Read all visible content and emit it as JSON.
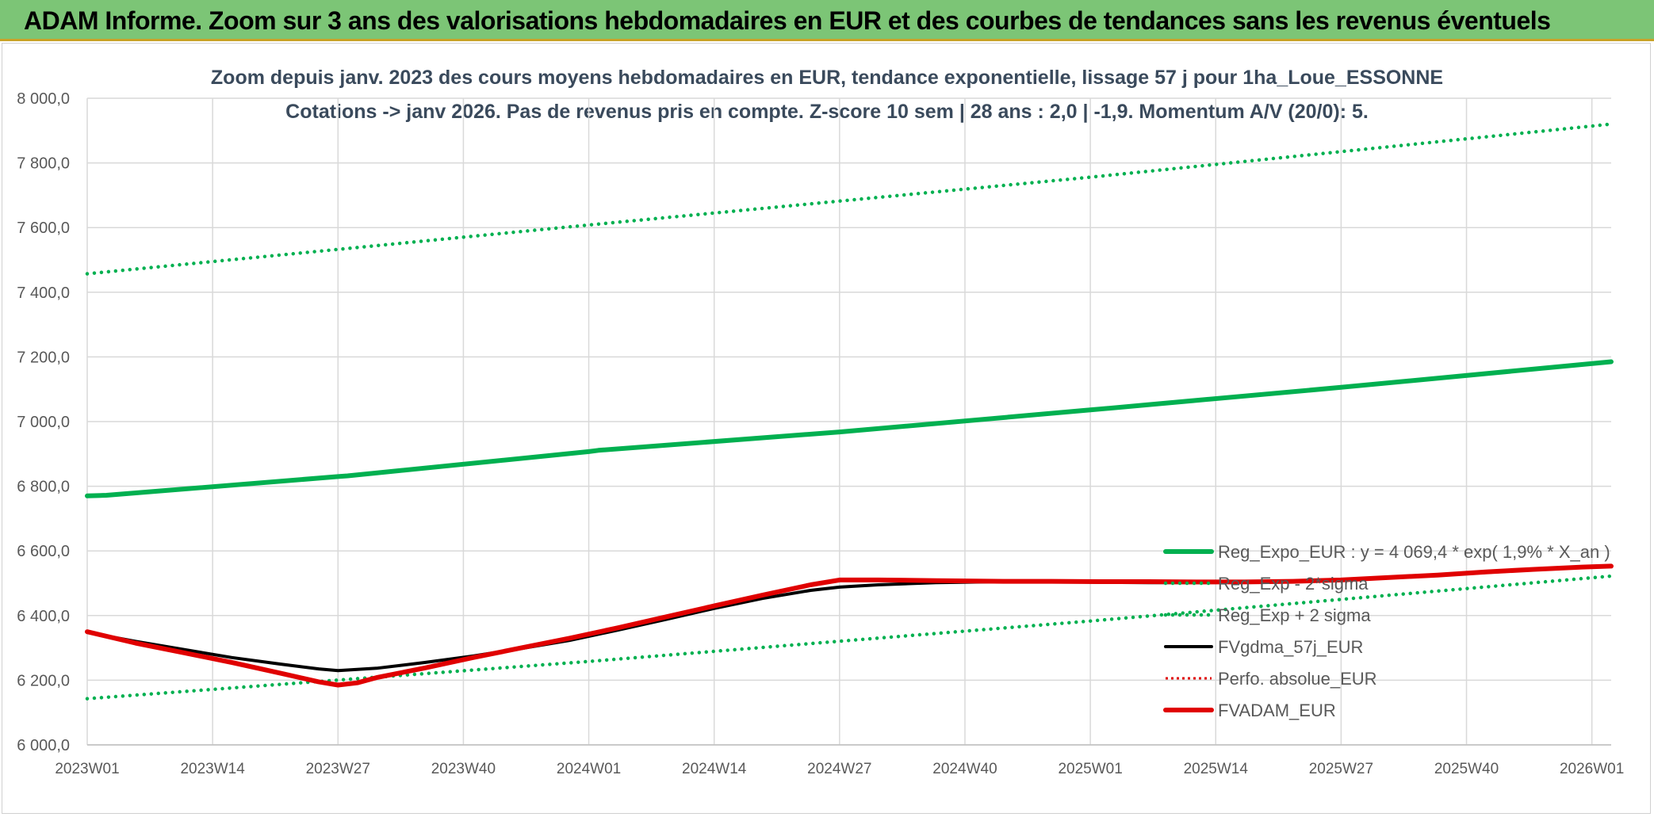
{
  "banner": {
    "title": "ADAM Informe. Zoom sur 3 ans des valorisations hebdomadaires en EUR et des courbes de tendances sans les revenus éventuels"
  },
  "chart_data": {
    "type": "line",
    "title": "Zoom depuis janv. 2023 des cours moyens hebdomadaires en EUR, tendance exponentielle, lissage 57 j pour 1ha_Loue_ESSONNE",
    "subtitle": "Cotations -> janv 2026. Pas de revenus pris en compte. Z-score 10 sem | 28 ans : 2,0 | -1,9. Momentum A/V (20/0): 5.",
    "xlabel": "",
    "ylabel": "",
    "ylim": [
      6000,
      8000
    ],
    "yticks": [
      "6 000,0",
      "6 200,0",
      "6 400,0",
      "6 600,0",
      "6 800,0",
      "7 000,0",
      "7 200,0",
      "7 400,0",
      "7 600,0",
      "7 800,0",
      "8 000,0"
    ],
    "ytick_values": [
      6000,
      6200,
      6400,
      6600,
      6800,
      7000,
      7200,
      7400,
      7600,
      7800,
      8000
    ],
    "x_index_range": [
      0,
      158
    ],
    "x_categories": [
      "2023W01",
      "2023W14",
      "2023W27",
      "2023W40",
      "2024W01",
      "2024W14",
      "2024W27",
      "2024W40",
      "2025W01",
      "2025W14",
      "2025W27",
      "2025W40",
      "2026W01"
    ],
    "x_category_index": [
      0,
      13,
      26,
      39,
      52,
      65,
      78,
      91,
      104,
      117,
      130,
      143,
      156
    ],
    "legend_position": "bottom-right",
    "series": [
      {
        "name": "Reg_Expo_EUR : y = 4 069,4 * exp( 1,9% *  X_an )",
        "color": "#00b050",
        "style": "solid-thick",
        "x": [
          0,
          2,
          26,
          27,
          52,
          53,
          78,
          104,
          130,
          158
        ],
        "values": [
          6770,
          6772,
          6830,
          6832,
          6907,
          6911,
          6968,
          7036,
          7106,
          7185
        ]
      },
      {
        "name": "Reg_Exp - 2*sigma",
        "color": "#00b050",
        "style": "dotted",
        "x": [
          0,
          52,
          104,
          158
        ],
        "values": [
          6143,
          6258,
          6383,
          6522
        ]
      },
      {
        "name": "Reg_Exp + 2 sigma",
        "color": "#00b050",
        "style": "dotted",
        "x": [
          0,
          52,
          104,
          158
        ],
        "values": [
          7457,
          7608,
          7756,
          7920
        ]
      },
      {
        "name": "FVgdma_57j_EUR",
        "color": "#000000",
        "style": "solid",
        "x": [
          0,
          5,
          10,
          15,
          20,
          24,
          26,
          30,
          35,
          40,
          45,
          50,
          55,
          60,
          65,
          70,
          75,
          78,
          82,
          88,
          95,
          100,
          105,
          110,
          115,
          120,
          125,
          130,
          135,
          140,
          145,
          150,
          155,
          158
        ],
        "values": [
          6348,
          6320,
          6295,
          6270,
          6250,
          6235,
          6230,
          6237,
          6255,
          6275,
          6298,
          6323,
          6355,
          6388,
          6422,
          6453,
          6478,
          6488,
          6495,
          6502,
          6505,
          6505,
          6503,
          6502,
          6502,
          6503,
          6505,
          6510,
          6518,
          6525,
          6533,
          6542,
          6550,
          6552
        ]
      },
      {
        "name": "Perfo. absolue_EUR",
        "color": "#e00000",
        "style": "dotted-thin",
        "x": [],
        "values": []
      },
      {
        "name": "FVADAM_EUR",
        "color": "#e00000",
        "style": "solid-thick",
        "x": [
          0,
          5,
          10,
          15,
          20,
          24,
          26,
          28,
          30,
          35,
          40,
          45,
          50,
          55,
          60,
          65,
          70,
          75,
          78,
          82,
          88,
          95,
          100,
          105,
          110,
          115,
          120,
          125,
          130,
          135,
          140,
          145,
          150,
          155,
          158
        ],
        "values": [
          6350,
          6315,
          6285,
          6255,
          6222,
          6195,
          6185,
          6192,
          6208,
          6238,
          6270,
          6300,
          6330,
          6362,
          6396,
          6430,
          6463,
          6495,
          6510,
          6510,
          6508,
          6506,
          6506,
          6505,
          6505,
          6504,
          6504,
          6506,
          6510,
          6518,
          6525,
          6535,
          6543,
          6550,
          6553
        ]
      }
    ]
  }
}
